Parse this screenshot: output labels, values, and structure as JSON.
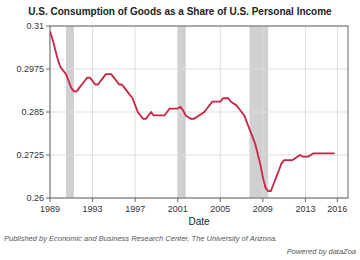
{
  "chart_data": {
    "type": "line",
    "title": "U.S. Consumption of Goods as a Share of U.S. Personal Income",
    "xlabel": "Date",
    "annotations": [
      "Published by   Economic and Business Research Center, The University of Arizona.",
      "Powered by dataZoa"
    ],
    "xlim": [
      1989,
      2017
    ],
    "ylim": [
      0.26,
      0.31
    ],
    "xticks": [
      1989,
      1993,
      1997,
      2001,
      2005,
      2009,
      2013,
      2016
    ],
    "yticks": [
      0.26,
      0.2725,
      0.285,
      0.2975,
      0.31
    ],
    "grid": true,
    "color": "#cc2244",
    "bands": {
      "color": "#d0d0d0",
      "ranges": [
        [
          1990.5,
          1991.25
        ],
        [
          2001.0,
          2001.75
        ],
        [
          2007.75,
          2009.5
        ]
      ]
    },
    "x": [
      1989.0,
      1989.25,
      1989.5,
      1989.75,
      1990.0,
      1990.25,
      1990.5,
      1990.75,
      1991.0,
      1991.25,
      1991.5,
      1991.75,
      1992.0,
      1992.25,
      1992.5,
      1992.75,
      1993.0,
      1993.25,
      1993.5,
      1993.75,
      1994.0,
      1994.25,
      1994.5,
      1994.75,
      1995.0,
      1995.25,
      1995.5,
      1995.75,
      1996.0,
      1996.25,
      1996.5,
      1996.75,
      1997.0,
      1997.25,
      1997.5,
      1997.75,
      1998.0,
      1998.25,
      1998.5,
      1998.75,
      1999.0,
      1999.25,
      1999.5,
      1999.75,
      2000.0,
      2000.25,
      2000.5,
      2000.75,
      2001.0,
      2001.25,
      2001.5,
      2001.75,
      2002.0,
      2002.25,
      2002.5,
      2002.75,
      2003.0,
      2003.25,
      2003.5,
      2003.75,
      2004.0,
      2004.25,
      2004.5,
      2004.75,
      2005.0,
      2005.25,
      2005.5,
      2005.75,
      2006.0,
      2006.25,
      2006.5,
      2006.75,
      2007.0,
      2007.25,
      2007.5,
      2007.75,
      2008.0,
      2008.25,
      2008.5,
      2008.75,
      2009.0,
      2009.25,
      2009.5,
      2009.75,
      2010.0,
      2010.25,
      2010.5,
      2010.75,
      2011.0,
      2011.25,
      2011.5,
      2011.75,
      2012.0,
      2012.25,
      2012.5,
      2012.75,
      2013.0,
      2013.25,
      2013.5,
      2013.75,
      2014.0,
      2014.25,
      2014.5,
      2014.75,
      2015.0,
      2015.25,
      2015.5,
      2015.75
    ],
    "values": [
      0.3085,
      0.306,
      0.303,
      0.3,
      0.298,
      0.297,
      0.296,
      0.294,
      0.292,
      0.291,
      0.291,
      0.292,
      0.293,
      0.294,
      0.295,
      0.295,
      0.294,
      0.293,
      0.293,
      0.294,
      0.295,
      0.296,
      0.296,
      0.296,
      0.295,
      0.294,
      0.293,
      0.293,
      0.292,
      0.291,
      0.29,
      0.289,
      0.287,
      0.285,
      0.284,
      0.283,
      0.283,
      0.284,
      0.285,
      0.284,
      0.284,
      0.284,
      0.284,
      0.284,
      0.285,
      0.286,
      0.286,
      0.286,
      0.286,
      0.2865,
      0.2855,
      0.284,
      0.2835,
      0.283,
      0.283,
      0.2835,
      0.284,
      0.2845,
      0.285,
      0.286,
      0.287,
      0.288,
      0.288,
      0.288,
      0.288,
      0.289,
      0.289,
      0.289,
      0.288,
      0.2875,
      0.287,
      0.286,
      0.285,
      0.284,
      0.282,
      0.28,
      0.278,
      0.276,
      0.273,
      0.27,
      0.266,
      0.263,
      0.262,
      0.262,
      0.264,
      0.266,
      0.268,
      0.27,
      0.271,
      0.271,
      0.271,
      0.271,
      0.2715,
      0.272,
      0.2725,
      0.272,
      0.272,
      0.272,
      0.2725,
      0.273,
      0.273,
      0.273,
      0.273,
      0.273,
      0.273,
      0.273,
      0.273,
      0.273
    ]
  }
}
